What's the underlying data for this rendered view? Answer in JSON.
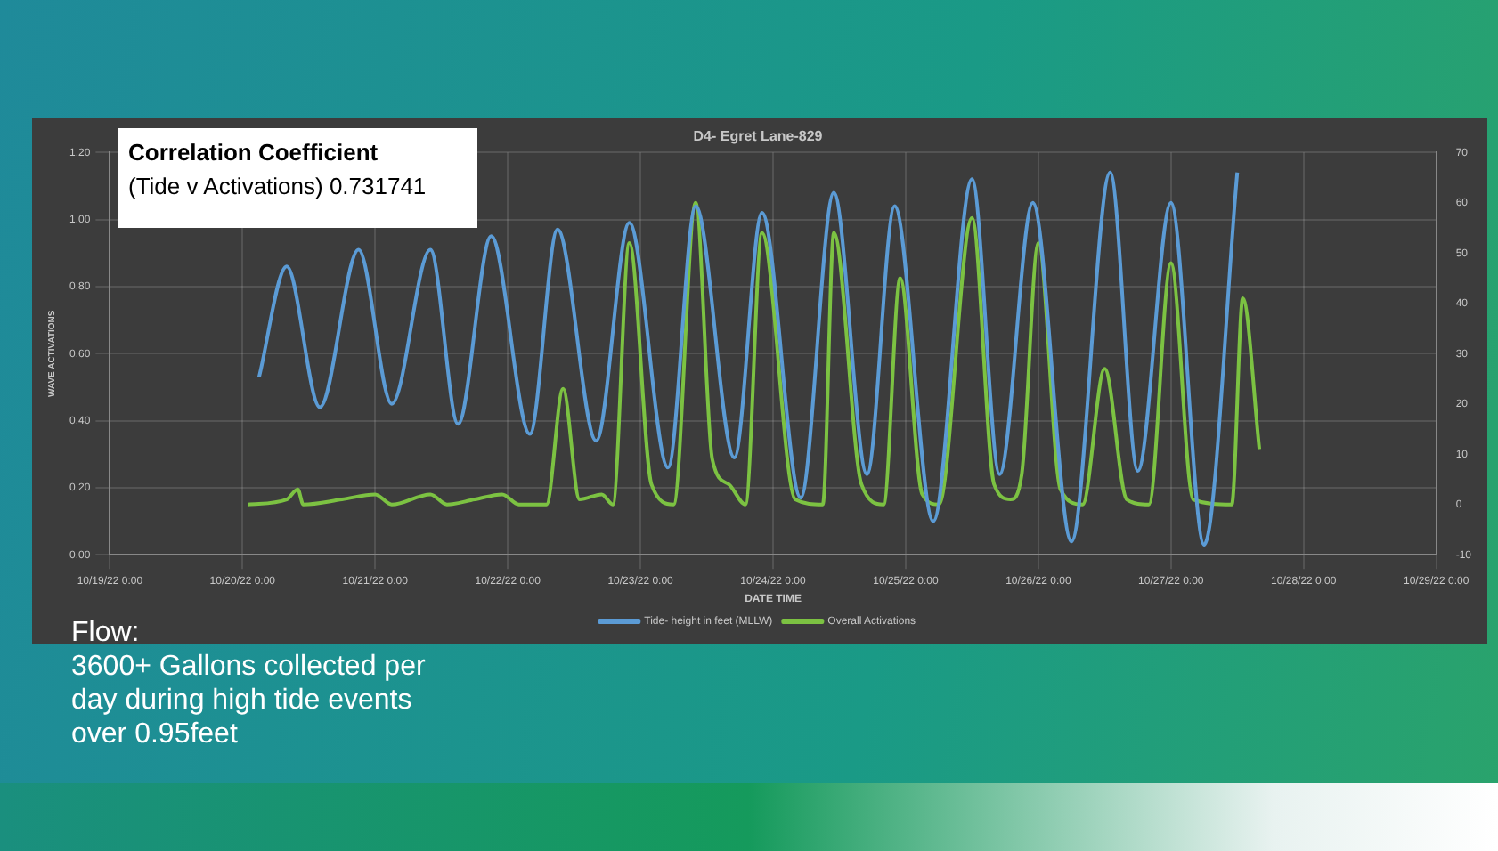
{
  "chart_data": {
    "type": "line",
    "title": "D4- Egret Lane-829",
    "xlabel": "DATE TIME",
    "ylabel": "WAVE ACTIVATIONS",
    "annotations": [
      "Correlation Coefficient",
      "(Tide v Activations) 0.731741",
      "Flow:",
      "3600+ Gallons collected per day during high tide events over 0.95feet"
    ],
    "xlim": [
      "--10-19T00:00",
      "--10-29T00:00"
    ],
    "xticks": [
      {
        "value": "--10-19T00:00",
        "label": "10/19/22 0:00"
      },
      {
        "value": "--10-20T00:00",
        "label": "10/20/22 0:00"
      },
      {
        "value": "--10-21T00:00",
        "label": "10/21/22 0:00"
      },
      {
        "value": "--10-22T00:00",
        "label": "10/22/22 0:00"
      },
      {
        "value": "--10-23T00:00",
        "label": "10/23/22 0:00"
      },
      {
        "value": "--10-24T00:00",
        "label": "10/24/22 0:00"
      },
      {
        "value": "--10-25T00:00",
        "label": "10/25/22 0:00"
      },
      {
        "value": "--10-26T00:00",
        "label": "10/26/22 0:00"
      },
      {
        "value": "--10-27T00:00",
        "label": "10/27/22 0:00"
      },
      {
        "value": "--10-28T00:00",
        "label": "10/28/22 0:00"
      },
      {
        "value": "--10-29T00:00",
        "label": "10/29/22 0:00"
      }
    ],
    "ylim": [
      0,
      1.2
    ],
    "yticks": [
      {
        "value": 0,
        "label": "0.00"
      },
      {
        "value": 0.2,
        "label": "0.20"
      },
      {
        "value": 0.4,
        "label": "0.40"
      },
      {
        "value": 0.6,
        "label": "0.60"
      },
      {
        "value": 0.8,
        "label": "0.80"
      },
      {
        "value": 1,
        "label": "1.00"
      },
      {
        "value": 1.2,
        "label": "1.20"
      }
    ],
    "y2lim": [
      -10,
      70
    ],
    "y2ticks": [
      -10,
      0,
      10,
      20,
      30,
      40,
      50,
      60,
      70
    ],
    "grid": true,
    "legend": "bottom",
    "series": [
      {
        "name": "Tide- height in feet (MLLW)",
        "color": "#5b9bd5",
        "x": [
          "--10-20T03:00",
          "--10-20T08:00",
          "--10-20T14:00",
          "--10-20T21:00",
          "--10-21T03:00",
          "--10-21T10:00",
          "--10-21T15:00",
          "--10-21T21:00",
          "--10-22T04:00",
          "--10-22T09:00",
          "--10-22T16:00",
          "--10-22T22:00",
          "--10-23T05:00",
          "--10-23T10:00",
          "--10-23T17:00",
          "--10-23T22:00",
          "--10-24T05:00",
          "--10-24T11:00",
          "--10-24T17:00",
          "--10-24T22:00",
          "--10-25T05:00",
          "--10-25T12:00",
          "--10-25T17:00",
          "--10-25T23:00",
          "--10-26T06:00",
          "--10-26T13:00",
          "--10-26T18:00",
          "--10-27T00:00",
          "--10-27T06:00",
          "--10-27T12:00"
        ],
        "values": [
          0.53,
          0.86,
          0.44,
          0.91,
          0.45,
          0.91,
          0.39,
          0.95,
          0.36,
          0.97,
          0.34,
          0.99,
          0.26,
          1.04,
          0.29,
          1.02,
          0.17,
          1.08,
          0.24,
          1.04,
          0.1,
          1.12,
          0.24,
          1.05,
          0.04,
          1.14,
          0.25,
          1.05,
          0.03,
          1.14
        ]
      },
      {
        "name": "Overall Activations",
        "color": "#7cc242",
        "axis": "y2",
        "x": [
          "--10-20T01:00",
          "--10-20T08:00",
          "--10-20T10:00",
          "--10-20T11:00",
          "--10-20T18:00",
          "--10-21T00:00",
          "--10-21T03:00",
          "--10-21T10:00",
          "--10-21T13:00",
          "--10-21T18:00",
          "--10-21T23:00",
          "--10-22T02:00",
          "--10-22T07:00",
          "--10-22T10:00",
          "--10-22T13:00",
          "--10-22T17:00",
          "--10-22T19:00",
          "--10-22T22:00",
          "--10-23T02:00",
          "--10-23T06:00",
          "--10-23T10:00",
          "--10-23T13:00",
          "--10-23T16:00",
          "--10-23T19:00",
          "--10-23T22:00",
          "--10-24T04:00",
          "--10-24T09:00",
          "--10-24T11:00",
          "--10-24T16:00",
          "--10-24T20:00",
          "--10-24T23:00",
          "--10-25T03:00",
          "--10-25T06:00",
          "--10-25T12:00",
          "--10-25T16:00",
          "--10-25T19:00",
          "--10-25T21:00",
          "--10-26T00:00",
          "--10-26T04:00",
          "--10-26T08:00",
          "--10-26T12:00",
          "--10-26T16:00",
          "--10-26T20:00",
          "--10-27T00:00",
          "--10-27T04:00",
          "--10-27T11:00",
          "--10-27T13:00",
          "--10-27T16:00"
        ],
        "values": [
          0,
          1,
          3,
          0,
          1,
          2,
          0,
          2,
          0,
          1,
          2,
          0,
          0,
          23,
          1,
          2,
          0,
          52,
          4,
          0,
          60,
          9,
          4,
          0,
          54,
          1,
          0,
          54,
          4,
          0,
          45,
          2,
          0,
          57,
          4,
          1,
          6,
          52,
          3,
          0,
          27,
          1,
          0,
          48,
          1,
          0,
          41,
          11
        ]
      }
    ]
  }
}
